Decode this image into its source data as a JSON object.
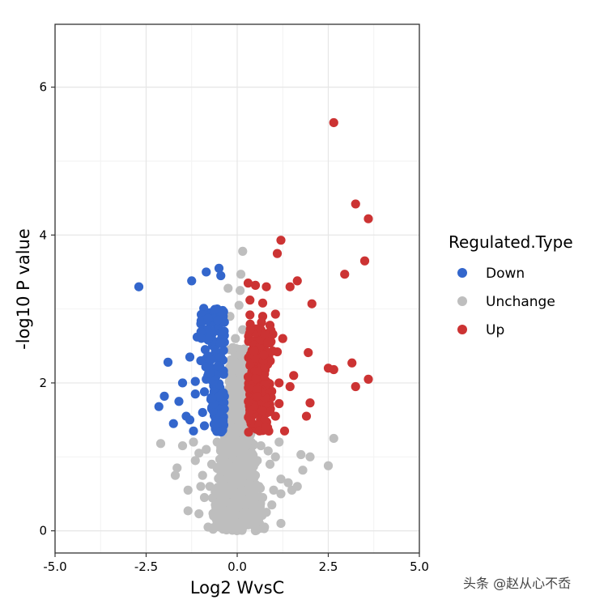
{
  "chart_data": {
    "type": "scatter",
    "title": "",
    "xlabel": "Log2 WvsC",
    "ylabel": "-log10 P value",
    "xlim": [
      -5.0,
      5.0
    ],
    "ylim": [
      -0.3,
      6.85
    ],
    "x_ticks": [
      "-5.0",
      "-2.5",
      "0.0",
      "2.5",
      "5.0"
    ],
    "y_ticks": [
      "0",
      "2",
      "4",
      "6"
    ],
    "grid": true,
    "legend": {
      "title": "Regulated.Type",
      "placement": "right",
      "entries": [
        {
          "name": "Down",
          "color": "#3366CC"
        },
        {
          "name": "Unchange",
          "color": "#BEBEBE"
        },
        {
          "name": "Up",
          "color": "#CC3333"
        }
      ]
    },
    "series": [
      {
        "name": "Unchange",
        "color": "#BEBEBE",
        "points": [
          [
            0.15,
            3.78
          ],
          [
            0.1,
            3.47
          ],
          [
            0.08,
            3.25
          ],
          [
            0.05,
            3.05
          ],
          [
            -0.25,
            3.28
          ],
          [
            -0.2,
            2.9
          ],
          [
            0.15,
            2.72
          ],
          [
            -0.05,
            2.6
          ],
          [
            0.1,
            2.45
          ],
          [
            -0.1,
            2.3
          ],
          [
            0.05,
            2.15
          ],
          [
            -0.15,
            2.05
          ],
          [
            0.2,
            1.95
          ],
          [
            -0.2,
            1.85
          ],
          [
            0.0,
            1.75
          ],
          [
            -0.05,
            1.62
          ],
          [
            0.1,
            1.55
          ],
          [
            -0.3,
            1.5
          ],
          [
            0.25,
            1.45
          ],
          [
            -0.1,
            1.38
          ],
          [
            -2.1,
            1.18
          ],
          [
            -1.5,
            1.15
          ],
          [
            -1.2,
            1.2
          ],
          [
            -1.05,
            1.05
          ],
          [
            -1.65,
            0.85
          ],
          [
            -1.7,
            0.75
          ],
          [
            -1.35,
            0.55
          ],
          [
            -1.35,
            0.27
          ],
          [
            -1.05,
            0.23
          ],
          [
            2.65,
            1.25
          ],
          [
            2.5,
            0.88
          ],
          [
            2.0,
            1.0
          ],
          [
            1.75,
            1.03
          ],
          [
            1.8,
            0.82
          ],
          [
            1.65,
            0.6
          ],
          [
            1.5,
            0.55
          ],
          [
            1.4,
            0.65
          ],
          [
            1.2,
            0.7
          ],
          [
            1.2,
            0.5
          ],
          [
            1.15,
            1.2
          ],
          [
            1.05,
            1.0
          ],
          [
            1.2,
            0.1
          ],
          [
            0.75,
            0.05
          ],
          [
            -0.8,
            0.05
          ],
          [
            0.95,
            0.35
          ],
          [
            -1.15,
            0.95
          ],
          [
            -0.95,
            0.75
          ],
          [
            -0.9,
            0.45
          ],
          [
            0.9,
            0.9
          ],
          [
            -0.75,
            0.6
          ],
          [
            0.7,
            0.45
          ],
          [
            -0.6,
            0.35
          ],
          [
            0.6,
            0.3
          ],
          [
            -0.5,
            0.15
          ],
          [
            0.45,
            0.12
          ],
          [
            -0.3,
            0.05
          ],
          [
            0.3,
            0.08
          ],
          [
            0.0,
            0.02
          ],
          [
            -0.15,
            0.03
          ],
          [
            0.15,
            0.04
          ],
          [
            -0.7,
            0.9
          ],
          [
            0.55,
            0.95
          ],
          [
            -0.4,
            1.1
          ],
          [
            0.4,
            1.05
          ],
          [
            -0.55,
            1.2
          ],
          [
            0.65,
            1.15
          ],
          [
            -0.85,
            1.1
          ],
          [
            0.85,
            1.08
          ],
          [
            -0.25,
            0.85
          ],
          [
            0.25,
            0.8
          ],
          [
            -0.45,
            0.7
          ],
          [
            0.35,
            0.62
          ],
          [
            -0.1,
            0.5
          ],
          [
            0.1,
            0.45
          ],
          [
            -0.2,
            0.28
          ],
          [
            0.2,
            0.25
          ],
          [
            -1.0,
            0.6
          ],
          [
            1.0,
            0.55
          ],
          [
            -0.65,
            0.2
          ],
          [
            0.6,
            0.6
          ],
          [
            -0.35,
            0.95
          ],
          [
            0.5,
            0.75
          ],
          [
            -0.55,
            0.5
          ],
          [
            0.8,
            0.25
          ]
        ]
      },
      {
        "name": "Down",
        "color": "#3366CC",
        "points": [
          [
            -2.7,
            3.3
          ],
          [
            -1.25,
            3.38
          ],
          [
            -0.85,
            3.5
          ],
          [
            -0.5,
            3.55
          ],
          [
            -0.45,
            3.45
          ],
          [
            -0.75,
            2.95
          ],
          [
            -0.55,
            3.0
          ],
          [
            -0.4,
            2.98
          ],
          [
            -1.0,
            2.8
          ],
          [
            -0.6,
            2.82
          ],
          [
            -1.1,
            2.62
          ],
          [
            -0.8,
            2.58
          ],
          [
            -0.5,
            2.7
          ],
          [
            -0.35,
            2.55
          ],
          [
            -1.9,
            2.28
          ],
          [
            -1.3,
            2.35
          ],
          [
            -1.0,
            2.3
          ],
          [
            -0.7,
            2.32
          ],
          [
            -0.45,
            2.35
          ],
          [
            -1.5,
            2.0
          ],
          [
            -1.15,
            2.02
          ],
          [
            -0.85,
            2.05
          ],
          [
            -0.6,
            2.1
          ],
          [
            -0.4,
            2.15
          ],
          [
            -2.0,
            1.82
          ],
          [
            -2.15,
            1.68
          ],
          [
            -1.6,
            1.75
          ],
          [
            -1.15,
            1.85
          ],
          [
            -0.9,
            1.88
          ],
          [
            -0.65,
            1.8
          ],
          [
            -0.45,
            1.85
          ],
          [
            -1.4,
            1.55
          ],
          [
            -1.3,
            1.5
          ],
          [
            -0.95,
            1.6
          ],
          [
            -0.7,
            1.65
          ],
          [
            -0.45,
            1.6
          ],
          [
            -1.75,
            1.45
          ],
          [
            -1.2,
            1.35
          ],
          [
            -0.9,
            1.42
          ],
          [
            -0.6,
            1.38
          ],
          [
            -0.4,
            1.45
          ]
        ]
      },
      {
        "name": "Up",
        "color": "#CC3333",
        "points": [
          [
            2.65,
            5.52
          ],
          [
            3.25,
            4.42
          ],
          [
            3.6,
            4.22
          ],
          [
            1.2,
            3.93
          ],
          [
            1.1,
            3.75
          ],
          [
            3.5,
            3.65
          ],
          [
            2.95,
            3.47
          ],
          [
            0.3,
            3.35
          ],
          [
            0.5,
            3.32
          ],
          [
            0.8,
            3.3
          ],
          [
            1.45,
            3.3
          ],
          [
            1.65,
            3.38
          ],
          [
            0.35,
            3.12
          ],
          [
            0.7,
            3.08
          ],
          [
            2.05,
            3.07
          ],
          [
            0.35,
            2.92
          ],
          [
            0.7,
            2.9
          ],
          [
            1.05,
            2.93
          ],
          [
            0.5,
            2.72
          ],
          [
            0.9,
            2.78
          ],
          [
            0.4,
            2.55
          ],
          [
            0.75,
            2.5
          ],
          [
            1.25,
            2.6
          ],
          [
            0.45,
            2.35
          ],
          [
            0.8,
            2.38
          ],
          [
            1.1,
            2.42
          ],
          [
            1.95,
            2.41
          ],
          [
            3.15,
            2.27
          ],
          [
            2.5,
            2.2
          ],
          [
            2.65,
            2.18
          ],
          [
            0.4,
            2.15
          ],
          [
            0.75,
            2.12
          ],
          [
            1.15,
            2.0
          ],
          [
            1.55,
            2.1
          ],
          [
            3.6,
            2.05
          ],
          [
            0.35,
            1.95
          ],
          [
            0.7,
            1.98
          ],
          [
            1.45,
            1.95
          ],
          [
            3.25,
            1.95
          ],
          [
            0.45,
            1.75
          ],
          [
            0.8,
            1.8
          ],
          [
            1.15,
            1.72
          ],
          [
            2.0,
            1.73
          ],
          [
            0.4,
            1.55
          ],
          [
            0.75,
            1.6
          ],
          [
            1.05,
            1.55
          ],
          [
            1.9,
            1.55
          ],
          [
            0.45,
            1.42
          ],
          [
            0.8,
            1.45
          ],
          [
            1.3,
            1.35
          ]
        ]
      }
    ]
  },
  "watermark": "头条 @赵从心不岙"
}
